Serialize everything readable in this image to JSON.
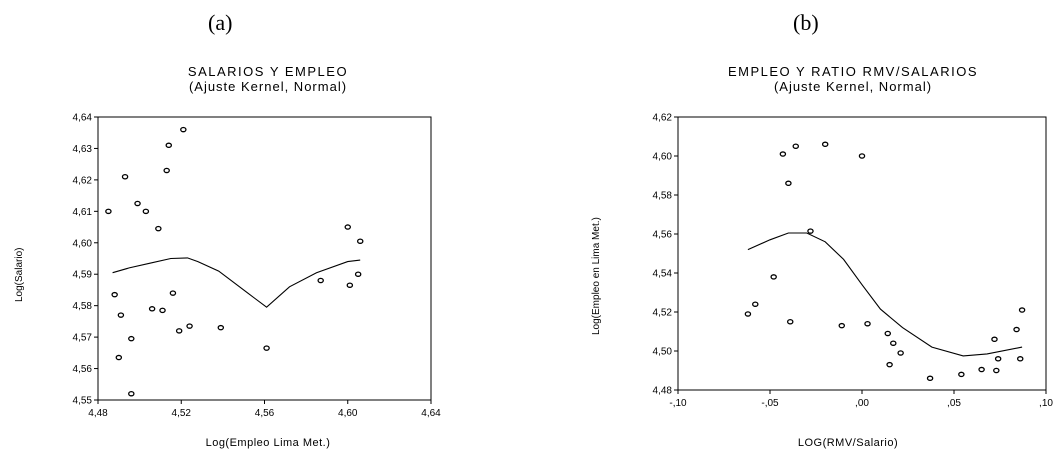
{
  "panels": {
    "a": "(a)",
    "b": "(b)"
  },
  "chart_data": [
    {
      "type": "scatter",
      "title": "SALARIOS Y EMPLEO",
      "subtitle": "(Ajuste Kernel, Normal)",
      "xlabel": "Log(Empleo Lima Met.)",
      "ylabel": "Log(Salario)",
      "xlim": [
        4.48,
        4.64
      ],
      "ylim": [
        4.55,
        4.64
      ],
      "xticks": [
        "4,48",
        "4,52",
        "4,56",
        "4,60",
        "4,64"
      ],
      "yticks": [
        "4,55",
        "4,56",
        "4,57",
        "4,58",
        "4,59",
        "4,60",
        "4,61",
        "4,62",
        "4,63",
        "4,64"
      ],
      "points": [
        [
          4.485,
          4.61
        ],
        [
          4.488,
          4.5835
        ],
        [
          4.491,
          4.577
        ],
        [
          4.493,
          4.621
        ],
        [
          4.49,
          4.5635
        ],
        [
          4.496,
          4.5695
        ],
        [
          4.496,
          4.552
        ],
        [
          4.499,
          4.6125
        ],
        [
          4.503,
          4.61
        ],
        [
          4.506,
          4.579
        ],
        [
          4.509,
          4.6045
        ],
        [
          4.511,
          4.5785
        ],
        [
          4.513,
          4.623
        ],
        [
          4.514,
          4.631
        ],
        [
          4.516,
          4.584
        ],
        [
          4.519,
          4.572
        ],
        [
          4.521,
          4.636
        ],
        [
          4.524,
          4.5735
        ],
        [
          4.539,
          4.573
        ],
        [
          4.561,
          4.5665
        ],
        [
          4.587,
          4.588
        ],
        [
          4.6,
          4.605
        ],
        [
          4.601,
          4.5865
        ],
        [
          4.605,
          4.59
        ],
        [
          4.606,
          4.6005
        ]
      ],
      "fit_line": [
        [
          4.487,
          4.5905
        ],
        [
          4.495,
          4.592
        ],
        [
          4.505,
          4.5935
        ],
        [
          4.515,
          4.595
        ],
        [
          4.523,
          4.5952
        ],
        [
          4.528,
          4.594
        ],
        [
          4.538,
          4.591
        ],
        [
          4.552,
          4.584
        ],
        [
          4.561,
          4.5795
        ],
        [
          4.572,
          4.586
        ],
        [
          4.585,
          4.5905
        ],
        [
          4.6,
          4.594
        ],
        [
          4.606,
          4.5945
        ]
      ]
    },
    {
      "type": "scatter",
      "title": "EMPLEO Y RATIO RMV/SALARIOS",
      "subtitle": "(Ajuste Kernel, Normal)",
      "xlabel": "LOG(RMV/Salario)",
      "ylabel": "Log(Empleo en Lima Met.)",
      "xlim": [
        -0.1,
        0.1
      ],
      "ylim": [
        4.48,
        4.62
      ],
      "xticks": [
        "-,10",
        "-,05",
        ",00",
        ",05",
        ",10"
      ],
      "yticks": [
        "4,48",
        "4,50",
        "4,52",
        "4,54",
        "4,56",
        "4,58",
        "4,60",
        "4,62"
      ],
      "points": [
        [
          -0.062,
          4.519
        ],
        [
          -0.058,
          4.524
        ],
        [
          -0.048,
          4.538
        ],
        [
          -0.043,
          4.601
        ],
        [
          -0.04,
          4.586
        ],
        [
          -0.039,
          4.515
        ],
        [
          -0.036,
          4.605
        ],
        [
          -0.028,
          4.5615
        ],
        [
          -0.02,
          4.606
        ],
        [
          -0.011,
          4.513
        ],
        [
          0.0,
          4.6
        ],
        [
          0.003,
          4.514
        ],
        [
          0.014,
          4.509
        ],
        [
          0.015,
          4.493
        ],
        [
          0.017,
          4.504
        ],
        [
          0.021,
          4.499
        ],
        [
          0.037,
          4.486
        ],
        [
          0.054,
          4.488
        ],
        [
          0.065,
          4.4905
        ],
        [
          0.072,
          4.506
        ],
        [
          0.073,
          4.49
        ],
        [
          0.074,
          4.496
        ],
        [
          0.084,
          4.511
        ],
        [
          0.086,
          4.496
        ],
        [
          0.087,
          4.521
        ]
      ],
      "fit_line": [
        [
          -0.062,
          4.552
        ],
        [
          -0.05,
          4.557
        ],
        [
          -0.04,
          4.5605
        ],
        [
          -0.03,
          4.5605
        ],
        [
          -0.02,
          4.556
        ],
        [
          -0.01,
          4.547
        ],
        [
          0.0,
          4.534
        ],
        [
          0.01,
          4.5215
        ],
        [
          0.022,
          4.512
        ],
        [
          0.038,
          4.502
        ],
        [
          0.055,
          4.4975
        ],
        [
          0.068,
          4.4985
        ],
        [
          0.087,
          4.502
        ]
      ]
    }
  ]
}
